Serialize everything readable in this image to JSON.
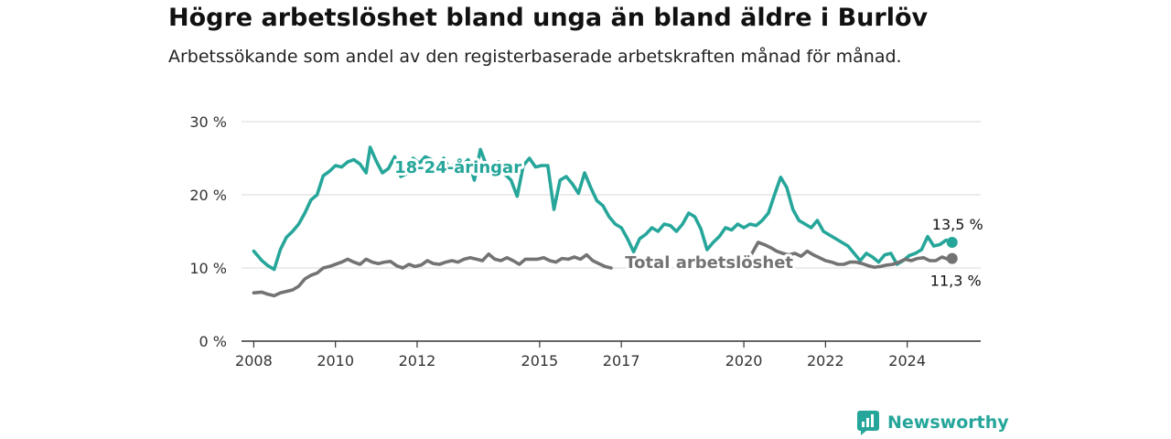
{
  "header": {
    "title": "Högre arbetslöshet bland unga än bland äldre i Burlöv",
    "subtitle": "Arbetssökande som andel av den registerbaserade arbetskraften månad för månad."
  },
  "brand": {
    "name": "Newsworthy",
    "icon": "newsworthy-logo-icon",
    "color": "#26a69a"
  },
  "chart_data": {
    "type": "line",
    "title": "Högre arbetslöshet bland unga än bland äldre i Burlöv",
    "subtitle": "Arbetssökande som andel av den registerbaserade arbetskraften månad för månad.",
    "xlabel": "",
    "ylabel": "",
    "xlim": [
      2007.7,
      2025.8
    ],
    "ylim": [
      0,
      30
    ],
    "y_ticks": [
      0,
      10,
      20,
      30
    ],
    "y_tick_labels": [
      "0 %",
      "10 %",
      "20 %",
      "30 %"
    ],
    "x_ticks": [
      2008,
      2010,
      2012,
      2015,
      2017,
      2020,
      2022,
      2024
    ],
    "x_tick_labels": [
      "2008",
      "2010",
      "2012",
      "2015",
      "2017",
      "2020",
      "2022",
      "2024"
    ],
    "grid": true,
    "series": [
      {
        "name": "18-24-åringar",
        "color": "#26a69a",
        "end_label": "13,5 %",
        "x": [
          2008.0,
          2008.2,
          2008.35,
          2008.5,
          2008.65,
          2008.8,
          2008.95,
          2009.1,
          2009.25,
          2009.4,
          2009.55,
          2009.7,
          2009.85,
          2010.0,
          2010.15,
          2010.3,
          2010.45,
          2010.6,
          2010.75,
          2010.85,
          2011.0,
          2011.15,
          2011.3,
          2011.45,
          2011.6,
          2011.75,
          2011.9,
          2012.05,
          2012.2,
          2012.35,
          2012.5,
          2012.65,
          2012.8,
          2012.95,
          2013.1,
          2013.25,
          2013.4,
          2013.55,
          2013.7,
          2013.85,
          2014.0,
          2014.15,
          2014.3,
          2014.45,
          2014.6,
          2014.75,
          2014.9,
          2015.05,
          2015.2,
          2015.35,
          2015.5,
          2015.65,
          2015.8,
          2015.95,
          2016.1,
          2016.25,
          2016.4,
          2016.55,
          2016.7,
          2016.85,
          2017.0,
          2017.15,
          2017.3,
          2017.45,
          2017.6,
          2017.75,
          2017.9,
          2018.05,
          2018.2,
          2018.35,
          2018.5,
          2018.65,
          2018.8,
          2018.95,
          2019.1,
          2019.25,
          2019.4,
          2019.55,
          2019.7,
          2019.85,
          2020.0,
          2020.15,
          2020.3,
          2020.45,
          2020.6,
          2020.75,
          2020.9,
          2021.05,
          2021.2,
          2021.35,
          2021.5,
          2021.65,
          2021.8,
          2021.95,
          2022.1,
          2022.25,
          2022.4,
          2022.55,
          2022.7,
          2022.85,
          2023.0,
          2023.15,
          2023.3,
          2023.45,
          2023.6,
          2023.75,
          2023.9,
          2024.05,
          2024.2,
          2024.35,
          2024.5,
          2024.65,
          2024.8,
          2024.95,
          2025.1
        ],
        "y": [
          12.3,
          11.0,
          10.3,
          9.8,
          12.5,
          14.2,
          15.0,
          16.0,
          17.5,
          19.3,
          20.0,
          22.6,
          23.2,
          24.0,
          23.8,
          24.5,
          24.8,
          24.2,
          23.0,
          26.5,
          24.6,
          23.0,
          23.6,
          25.2,
          22.5,
          22.9,
          25.0,
          24.3,
          25.2,
          24.8,
          24.0,
          25.0,
          23.5,
          24.5,
          24.0,
          24.8,
          22.0,
          26.2,
          24.0,
          23.2,
          24.5,
          22.8,
          22.0,
          19.8,
          24.0,
          25.0,
          23.8,
          24.0,
          24.0,
          18.0,
          22.0,
          22.5,
          21.5,
          20.2,
          23.0,
          21.0,
          19.2,
          18.5,
          17.0,
          16.0,
          15.5,
          14.0,
          12.2,
          14.0,
          14.6,
          15.5,
          15.0,
          16.0,
          15.8,
          15.0,
          16.0,
          17.5,
          17.0,
          15.3,
          12.5,
          13.5,
          14.3,
          15.5,
          15.2,
          16.0,
          15.5,
          16.0,
          15.8,
          16.5,
          17.5,
          20.0,
          22.4,
          21.0,
          18.0,
          16.5,
          16.0,
          15.5,
          16.5,
          15.0,
          14.5,
          14.0,
          13.5,
          13.0,
          12.0,
          11.0,
          12.0,
          11.5,
          10.8,
          11.8,
          12.0,
          10.5,
          11.0,
          11.7,
          12.0,
          12.5,
          14.3,
          13.0,
          13.2,
          13.8,
          13.5
        ]
      },
      {
        "name": "Total arbetslöshet",
        "color": "#737373",
        "end_label": "11,3 %",
        "x": [
          2008.0,
          2008.2,
          2008.35,
          2008.5,
          2008.65,
          2008.8,
          2008.95,
          2009.1,
          2009.25,
          2009.4,
          2009.55,
          2009.7,
          2009.85,
          2010.0,
          2010.15,
          2010.3,
          2010.45,
          2010.6,
          2010.75,
          2010.9,
          2011.05,
          2011.2,
          2011.35,
          2011.5,
          2011.65,
          2011.8,
          2011.95,
          2012.1,
          2012.25,
          2012.4,
          2012.55,
          2012.7,
          2012.85,
          2013.0,
          2013.15,
          2013.3,
          2013.45,
          2013.6,
          2013.75,
          2013.9,
          2014.05,
          2014.2,
          2014.35,
          2014.5,
          2014.65,
          2014.8,
          2014.95,
          2015.1,
          2015.25,
          2015.4,
          2015.55,
          2015.7,
          2015.85,
          2016.0,
          2016.15,
          2016.3,
          2016.45,
          2016.6,
          2016.75,
          2016.9,
          2017.05,
          2017.2,
          2017.35,
          2017.5,
          2017.65,
          2017.8,
          2017.95,
          2018.1,
          2018.25,
          2018.4,
          2018.55,
          2018.7,
          2018.85,
          2019.0,
          2019.15,
          2019.3,
          2019.45,
          2019.6,
          2019.75,
          2019.9,
          2020.05,
          2020.2,
          2020.35,
          2020.5,
          2020.65,
          2020.8,
          2020.95,
          2021.1,
          2021.25,
          2021.4,
          2021.55,
          2021.7,
          2021.85,
          2022.0,
          2022.15,
          2022.3,
          2022.45,
          2022.6,
          2022.75,
          2022.9,
          2023.05,
          2023.2,
          2023.35,
          2023.5,
          2023.65,
          2023.8,
          2023.95,
          2024.1,
          2024.25,
          2024.4,
          2024.55,
          2024.7,
          2024.85,
          2025.0,
          2025.1
        ],
        "y": [
          6.6,
          6.7,
          6.4,
          6.2,
          6.6,
          6.8,
          7.0,
          7.5,
          8.5,
          9.0,
          9.3,
          10.0,
          10.2,
          10.5,
          10.8,
          11.2,
          10.8,
          10.5,
          11.2,
          10.8,
          10.6,
          10.8,
          10.9,
          10.3,
          10.0,
          10.5,
          10.2,
          10.4,
          11.0,
          10.6,
          10.5,
          10.8,
          11.0,
          10.8,
          11.2,
          11.4,
          11.2,
          11.0,
          11.9,
          11.2,
          11.0,
          11.4,
          11.0,
          10.5,
          11.2,
          11.2,
          11.2,
          11.4,
          11.0,
          10.8,
          11.3,
          11.2,
          11.5,
          11.2,
          11.8,
          11.0,
          10.6,
          10.2,
          10.0,
          null,
          null,
          null,
          null,
          null,
          null,
          null,
          null,
          null,
          null,
          null,
          null,
          null,
          null,
          null,
          null,
          null,
          null,
          null,
          null,
          null,
          null,
          12.0,
          13.5,
          13.2,
          12.8,
          12.3,
          12.0,
          11.8,
          12.0,
          11.6,
          12.3,
          11.8,
          11.4,
          11.0,
          10.8,
          10.5,
          10.5,
          10.8,
          10.8,
          10.6,
          10.3,
          10.1,
          10.2,
          10.4,
          10.5,
          10.8,
          11.2,
          11.0,
          11.3,
          11.4,
          11.0,
          11.0,
          11.5,
          11.2,
          11.3
        ]
      }
    ],
    "annotations": [
      {
        "text": "18-24-åringar",
        "series": "18-24-åringar",
        "x": 2013.0,
        "y": 23.0
      },
      {
        "text": "Total arbetslöshet",
        "series": "Total arbetslöshet",
        "x": 2019.15,
        "y": 10.0
      }
    ]
  }
}
